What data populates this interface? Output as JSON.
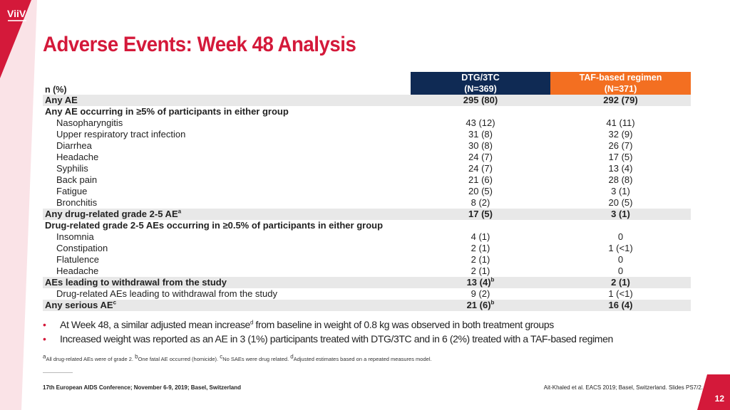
{
  "logo": {
    "text": "ViiV"
  },
  "title": "Adverse Events: Week 48 Analysis",
  "table": {
    "col0_header": "n (%)",
    "col1_header": {
      "name": "DTG/3TC",
      "n": "(N=369)"
    },
    "col2_header": {
      "name": "TAF-based regimen",
      "n": "(N=371)"
    },
    "rows": [
      {
        "label": "Any AE",
        "c1": "295 (80)",
        "c2": "292 (79)"
      },
      {
        "label": "Any AE occurring in ≥5% of participants in either group",
        "c1": "",
        "c2": ""
      },
      {
        "label": "Nasopharyngitis",
        "c1": "43 (12)",
        "c2": "41 (11)"
      },
      {
        "label": "Upper respiratory tract infection",
        "c1": "31 (8)",
        "c2": "32 (9)"
      },
      {
        "label": "Diarrhea",
        "c1": "30 (8)",
        "c2": "26 (7)"
      },
      {
        "label": "Headache",
        "c1": "24 (7)",
        "c2": "17 (5)"
      },
      {
        "label": "Syphilis",
        "c1": "24 (7)",
        "c2": "13 (4)"
      },
      {
        "label": "Back pain",
        "c1": "21 (6)",
        "c2": "28 (8)"
      },
      {
        "label": "Fatigue",
        "c1": "20 (5)",
        "c2": "3 (1)"
      },
      {
        "label": "Bronchitis",
        "c1": "8 (2)",
        "c2": "20 (5)"
      },
      {
        "label": "Any drug-related grade 2-5 AE",
        "sup": "a",
        "c1": "17 (5)",
        "c2": "3 (1)"
      },
      {
        "label": "Drug-related grade 2-5 AEs occurring in ≥0.5% of participants in either group",
        "c1": "",
        "c2": ""
      },
      {
        "label": "Insomnia",
        "c1": "4 (1)",
        "c2": "0"
      },
      {
        "label": "Constipation",
        "c1": "2 (1)",
        "c2": "1 (<1)"
      },
      {
        "label": "Flatulence",
        "c1": "2 (1)",
        "c2": "0"
      },
      {
        "label": "Headache",
        "c1": "2 (1)",
        "c2": "0"
      },
      {
        "label": "AEs leading to withdrawal from the study",
        "c1": "13 (4)",
        "c1_sup": "b",
        "c2": "2 (1)"
      },
      {
        "label": "Drug-related AEs leading to withdrawal from the study",
        "c1": "9 (2)",
        "c2": "1 (<1)"
      },
      {
        "label": "Any serious AE",
        "sup": "c",
        "c1": "21 (6)",
        "c1_sup": "b",
        "c2": "16 (4)"
      }
    ]
  },
  "bullets": {
    "b1_pre": "At Week 48, a similar adjusted mean increase",
    "b1_sup": "d",
    "b1_post": " from baseline in weight of 0.8 kg was observed in both treatment groups",
    "b2": "Increased weight was reported as an AE in 3 (1%) participants treated with DTG/3TC and in 6 (2%) treated with a TAF-based regimen",
    "marker": "•"
  },
  "footnote": {
    "a_sup": "a",
    "a": "All drug-related AEs were of grade 2. ",
    "b_sup": "b",
    "b": "One fatal AE occurred (homicide). ",
    "c_sup": "c",
    "c": "No SAEs were drug related. ",
    "d_sup": "d",
    "d": "Adjusted estimates based on a repeated measures model."
  },
  "conference": "17th European AIDS Conference; November 6-9, 2019; Basel, Switzerland",
  "reference": "Ait-Khaled et al. EACS 2019; Basel, Switzerland. Slides PS7/2.",
  "page_number": "12",
  "colors": {
    "brand_red": "#d4193a",
    "navy": "#0f2a54",
    "orange": "#f36f21",
    "row_shade": "#e8e8e8"
  }
}
